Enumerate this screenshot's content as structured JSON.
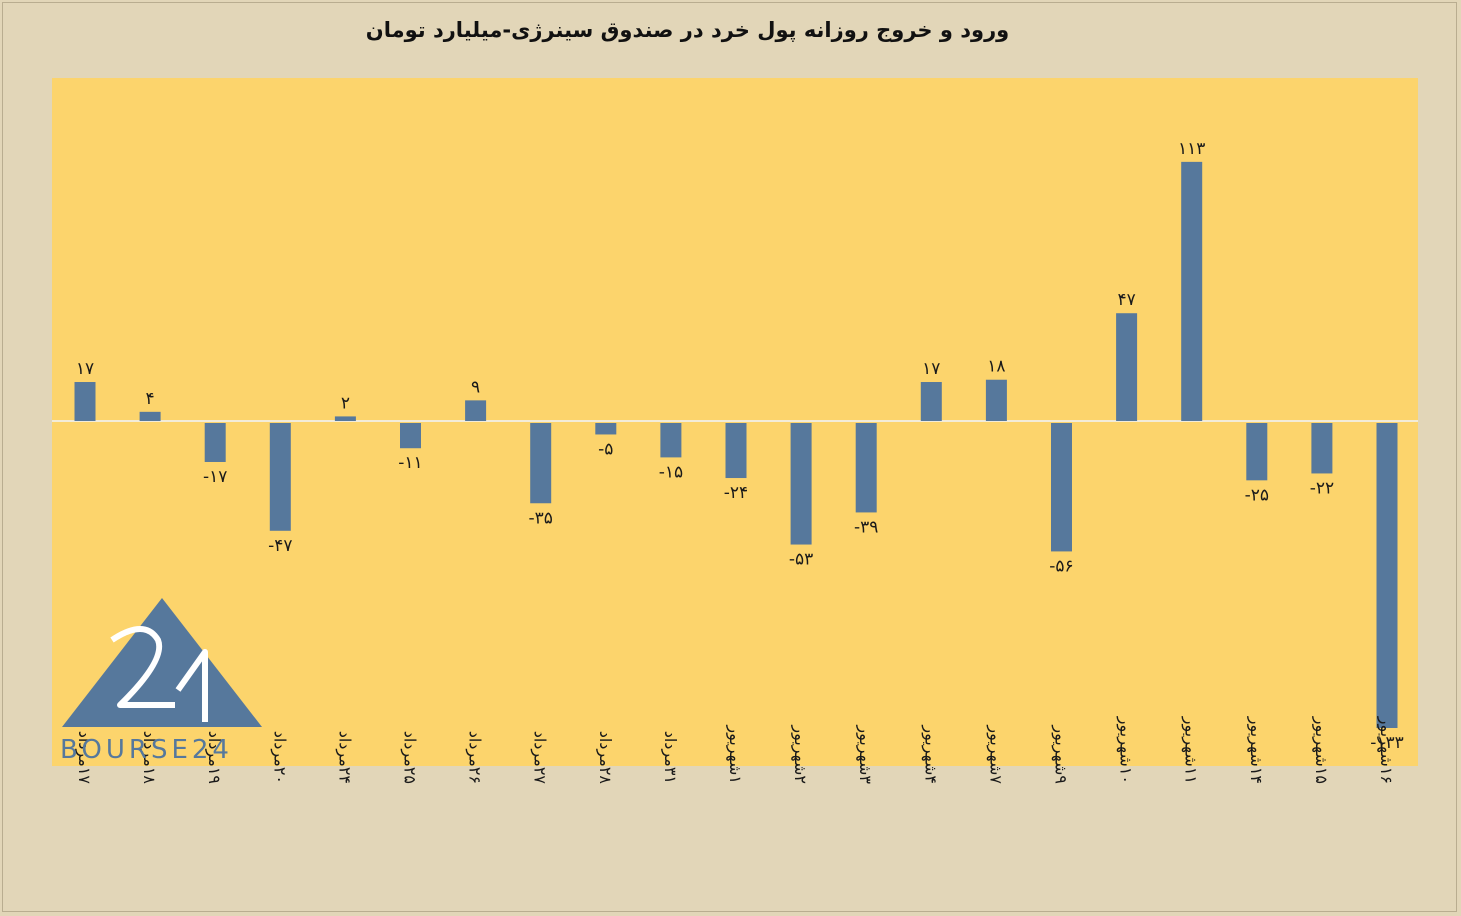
{
  "colors": {
    "background": "#e2d6b8",
    "plot_area": "#fcd46c",
    "bar": "#56789c",
    "zero_line": "#f3ecd8"
  },
  "logo": {
    "text": "BOURSE24",
    "mark": "24"
  },
  "chart_data": {
    "type": "bar",
    "title": "ورود و خروج روزانه پول خرد در صندوق سینرژی-میلیارد تومان",
    "xlabel": "",
    "ylabel": "",
    "ylim": [
      -135,
      115
    ],
    "grid": false,
    "legend": "none",
    "categories": [
      "۱۷مرداد",
      "۱۸مرداد",
      "۱۹مرداد",
      "۲۰مرداد",
      "۲۴مرداد",
      "۲۵مرداد",
      "۲۶مرداد",
      "۲۷مرداد",
      "۲۸مرداد",
      "۳۱مرداد",
      "۱شهریور",
      "۲شهریور",
      "۳شهریور",
      "۴شهریور",
      "۷شهریور",
      "۹شهریور",
      "۱۰شهریور",
      "۱۱شهریور",
      "۱۴شهریور",
      "۱۵شهریور",
      "۱۶شهریور"
    ],
    "values": [
      17,
      4,
      -17,
      -47,
      2,
      -11,
      9,
      -35,
      -5,
      -15,
      -24,
      -53,
      -39,
      17,
      18,
      -56,
      47,
      113,
      -25,
      -22,
      -133
    ],
    "data_labels": [
      "۱۷",
      "۴",
      "-۱۷",
      "-۴۷",
      "۲",
      "-۱۱",
      "۹",
      "-۳۵",
      "-۵",
      "-۱۵",
      "-۲۴",
      "-۵۳",
      "-۳۹",
      "۱۷",
      "۱۸",
      "-۵۶",
      "۴۷",
      "۱۱۳",
      "-۲۵",
      "-۲۲",
      "-۱۳۳"
    ]
  }
}
